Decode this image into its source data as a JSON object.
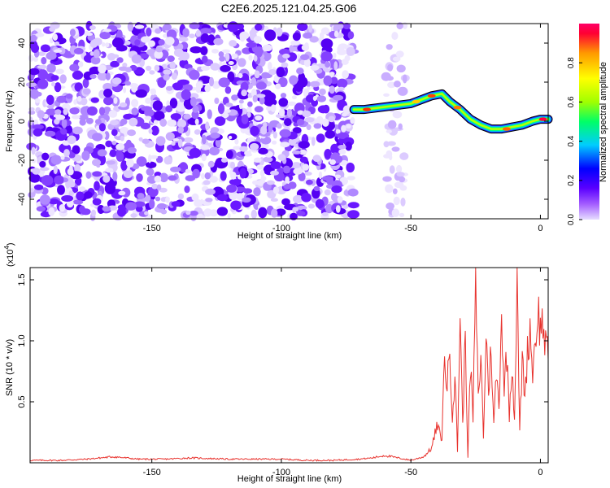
{
  "title": "C2E6.2025.121.04.25.G06",
  "colors": {
    "spectrogram_noise": "#7a2cff",
    "snr_line": "#e8332e",
    "axis": "#000000"
  },
  "chart_data": [
    {
      "type": "heatmap",
      "name": "spectrogram",
      "xlabel": "Height of straight line (km)",
      "ylabel": "Frequency (Hz)",
      "xlim": [
        -197,
        3
      ],
      "ylim": [
        -50,
        50
      ],
      "xticks": [
        -150,
        -100,
        -50,
        0
      ],
      "xtick_labels": [
        "-150",
        "-100",
        "-50",
        "0"
      ],
      "yticks": [
        40,
        20,
        0,
        -20,
        -40
      ],
      "ytick_labels": [
        "40",
        "20",
        "0",
        "-20",
        "-40"
      ],
      "colorbar": {
        "label": "Normalized spectral amplitude",
        "range": [
          0,
          1
        ],
        "ticks": [
          0.0,
          0.2,
          0.4,
          0.6,
          0.8
        ],
        "tick_labels": [
          "0.0",
          "0.2",
          "0.4",
          "0.6",
          "0.8"
        ],
        "colormap": [
          "#e6ddff",
          "#a35cff",
          "#5a00ff",
          "#0000ff",
          "#00ccff",
          "#00ff66",
          "#a0ff00",
          "#ffff00",
          "#ff9900",
          "#ff0033",
          "#ff0066"
        ]
      },
      "noise_region_km": [
        -197,
        -72
      ],
      "sparse_noise_region_km": [
        -60,
        -52
      ],
      "ridge": {
        "x": [
          -72,
          -68,
          -62,
          -56,
          -50,
          -46,
          -42,
          -38,
          -35,
          -31,
          -27,
          -23,
          -19,
          -15,
          -11,
          -7,
          -3,
          0,
          3
        ],
        "y": [
          6,
          6,
          7,
          8,
          9,
          11,
          13,
          14,
          10,
          6,
          1,
          -2,
          -4,
          -4,
          -3,
          -2,
          0,
          1,
          1
        ]
      }
    },
    {
      "type": "line",
      "name": "snr",
      "xlabel": "Height of straight line (km)",
      "ylabel": "SNR (10 * v/v)",
      "y_multiplier_label": "(x10",
      "y_multiplier_exp": "4",
      "y_multiplier_close": ")",
      "xlim": [
        -197,
        3
      ],
      "ylim": [
        0,
        1.6
      ],
      "xticks": [
        -150,
        -100,
        -50,
        0
      ],
      "xtick_labels": [
        "-150",
        "-100",
        "-50",
        "0"
      ],
      "yticks": [
        1.5,
        1.0,
        0.5
      ],
      "ytick_labels": [
        "1.5",
        "1.0",
        "0.5"
      ],
      "series": [
        {
          "x": [
            -197,
            -185,
            -175,
            -165,
            -160,
            -155,
            -145,
            -135,
            -120,
            -100,
            -90,
            -80,
            -70,
            -65,
            -60,
            -55,
            -50,
            -45,
            -42,
            -40,
            -38,
            -37,
            -36,
            -35,
            -34,
            -33,
            -32,
            -31,
            -30,
            -29,
            -28,
            -27,
            -26,
            -25,
            -24,
            -23,
            -22,
            -21,
            -20,
            -19,
            -18,
            -17,
            -16,
            -15,
            -14,
            -13,
            -12,
            -11,
            -10,
            -9,
            -8,
            -7,
            -6,
            -5,
            -4,
            -3,
            -2,
            -1,
            0,
            1,
            2,
            3
          ],
          "y": [
            0.02,
            0.02,
            0.03,
            0.05,
            0.04,
            0.03,
            0.03,
            0.04,
            0.03,
            0.03,
            0.02,
            0.02,
            0.03,
            0.04,
            0.06,
            0.04,
            0.02,
            0.05,
            0.12,
            0.3,
            0.2,
            0.9,
            0.6,
            0.95,
            0.4,
            0.7,
            0.1,
            1.25,
            0.3,
            1.05,
            0.05,
            0.8,
            0.35,
            1.55,
            0.5,
            0.9,
            0.2,
            1.05,
            0.6,
            0.95,
            0.3,
            0.75,
            0.45,
            1.25,
            0.6,
            0.9,
            0.4,
            0.85,
            0.35,
            1.55,
            0.25,
            0.85,
            0.55,
            0.9,
            1.1,
            0.75,
            1.0,
            1.25,
            1.1,
            1.15,
            0.95,
            0.85
          ]
        }
      ]
    }
  ]
}
